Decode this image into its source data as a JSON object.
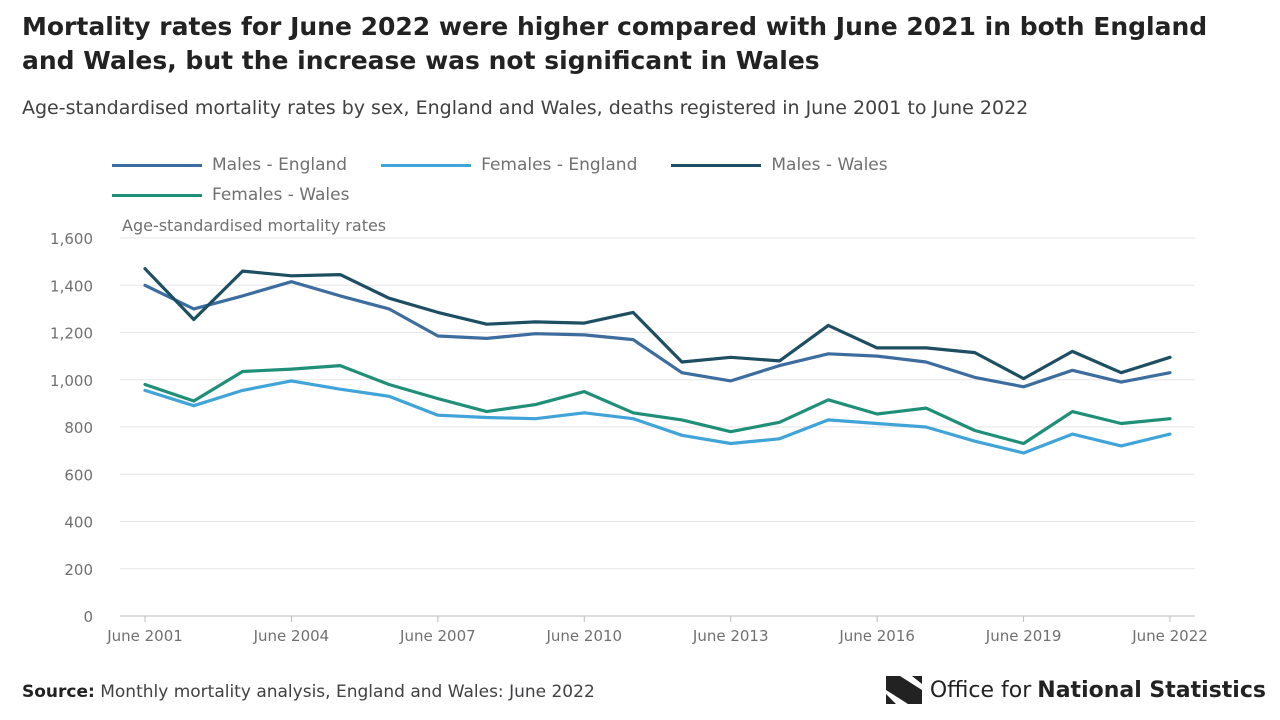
{
  "title": "Mortality rates for June 2022 were higher compared with June 2021 in both England and Wales, but the increase was not significant in Wales",
  "subtitle": "Age-standardised mortality rates by sex, England and Wales, deaths registered in June 2001 to June 2022",
  "footer": {
    "source_label": "Source:",
    "source_text": "Monthly mortality analysis, England and Wales: June 2022",
    "org_prefix": "Office for",
    "org_strong": "National Statistics"
  },
  "colors": {
    "males_england": "#3d6d9e",
    "females_england": "#41a4d8",
    "males_wales": "#1d4e62",
    "females_wales": "#1f8f78",
    "grid": "#e6e6e6",
    "axis_text": "#707071"
  },
  "chart_data": {
    "type": "line",
    "ylabel": "Age-standardised mortality rates",
    "ylim": [
      0,
      1600
    ],
    "yticks": [
      0,
      200,
      400,
      600,
      800,
      1000,
      1200,
      1400,
      1600
    ],
    "ytick_labels": [
      "0",
      "200",
      "400",
      "600",
      "800",
      "1,000",
      "1,200",
      "1,400",
      "1,600"
    ],
    "x": [
      2001,
      2002,
      2003,
      2004,
      2005,
      2006,
      2007,
      2008,
      2009,
      2010,
      2011,
      2012,
      2013,
      2014,
      2015,
      2016,
      2017,
      2018,
      2019,
      2020,
      2021,
      2022
    ],
    "xtick_labels": [
      {
        "year": 2001,
        "label": "June 2001"
      },
      {
        "year": 2004,
        "label": "June 2004"
      },
      {
        "year": 2007,
        "label": "June 2007"
      },
      {
        "year": 2010,
        "label": "June 2010"
      },
      {
        "year": 2013,
        "label": "June 2013"
      },
      {
        "year": 2016,
        "label": "June 2016"
      },
      {
        "year": 2019,
        "label": "June 2019"
      },
      {
        "year": 2022,
        "label": "June 2022"
      }
    ],
    "legend_position": "top",
    "grid": true,
    "series": [
      {
        "key": "males_england",
        "name": "Males - England",
        "values": [
          1400,
          1300,
          1355,
          1415,
          1355,
          1300,
          1185,
          1175,
          1195,
          1190,
          1170,
          1030,
          995,
          1060,
          1110,
          1100,
          1075,
          1010,
          970,
          1040,
          990,
          1030
        ]
      },
      {
        "key": "females_england",
        "name": "Females - England",
        "values": [
          955,
          890,
          955,
          995,
          960,
          930,
          850,
          840,
          835,
          860,
          835,
          765,
          730,
          750,
          830,
          815,
          800,
          740,
          690,
          770,
          720,
          770
        ]
      },
      {
        "key": "males_wales",
        "name": "Males - Wales",
        "values": [
          1470,
          1255,
          1460,
          1440,
          1445,
          1345,
          1285,
          1235,
          1245,
          1240,
          1285,
          1075,
          1095,
          1080,
          1230,
          1135,
          1135,
          1115,
          1005,
          1120,
          1030,
          1095
        ]
      },
      {
        "key": "females_wales",
        "name": "Females - Wales",
        "values": [
          980,
          910,
          1035,
          1045,
          1060,
          980,
          920,
          865,
          895,
          950,
          860,
          830,
          780,
          820,
          915,
          855,
          880,
          785,
          730,
          865,
          815,
          835
        ]
      }
    ]
  }
}
